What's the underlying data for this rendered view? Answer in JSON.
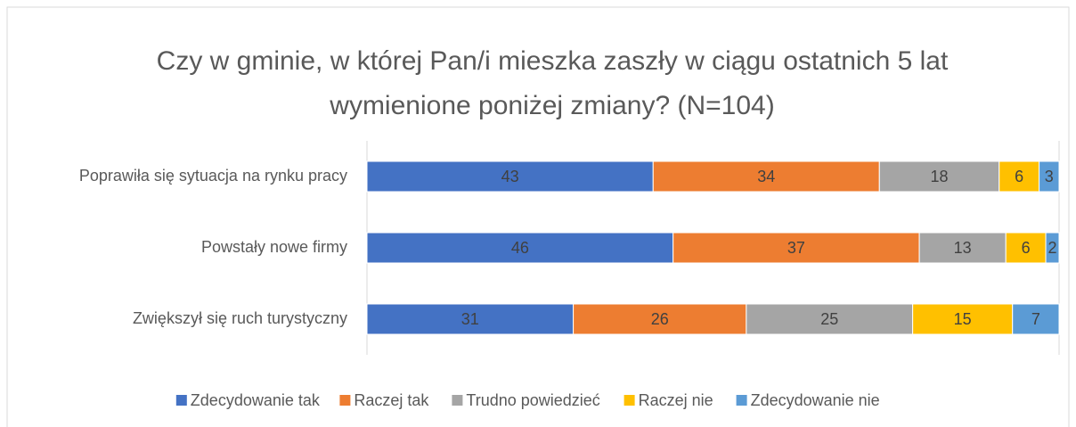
{
  "chart_data": {
    "type": "stacked_barh",
    "title": "Czy w gminie, w której Pan/i mieszka zaszły w ciągu ostatnich 5 lat wymienione poniżej zmiany? (N=104)",
    "categories": [
      "Poprawiła się sytuacja na rynku pracy",
      "Powstały nowe firmy",
      "Zwiększył się ruch turystyczny"
    ],
    "series": [
      {
        "name": "Zdecydowanie tak",
        "color": "#4472c4",
        "values": [
          43,
          46,
          31
        ]
      },
      {
        "name": "Raczej tak",
        "color": "#ed7d31",
        "values": [
          34,
          37,
          26
        ]
      },
      {
        "name": "Trudno powiedzieć",
        "color": "#a5a5a5",
        "values": [
          18,
          13,
          25
        ]
      },
      {
        "name": "Raczej nie",
        "color": "#ffc000",
        "values": [
          6,
          6,
          15
        ]
      },
      {
        "name": "Zdecydowanie nie",
        "color": "#5b9bd5",
        "values": [
          3,
          2,
          7
        ]
      }
    ],
    "xlim": [
      0,
      104
    ],
    "legend": "bottom"
  }
}
